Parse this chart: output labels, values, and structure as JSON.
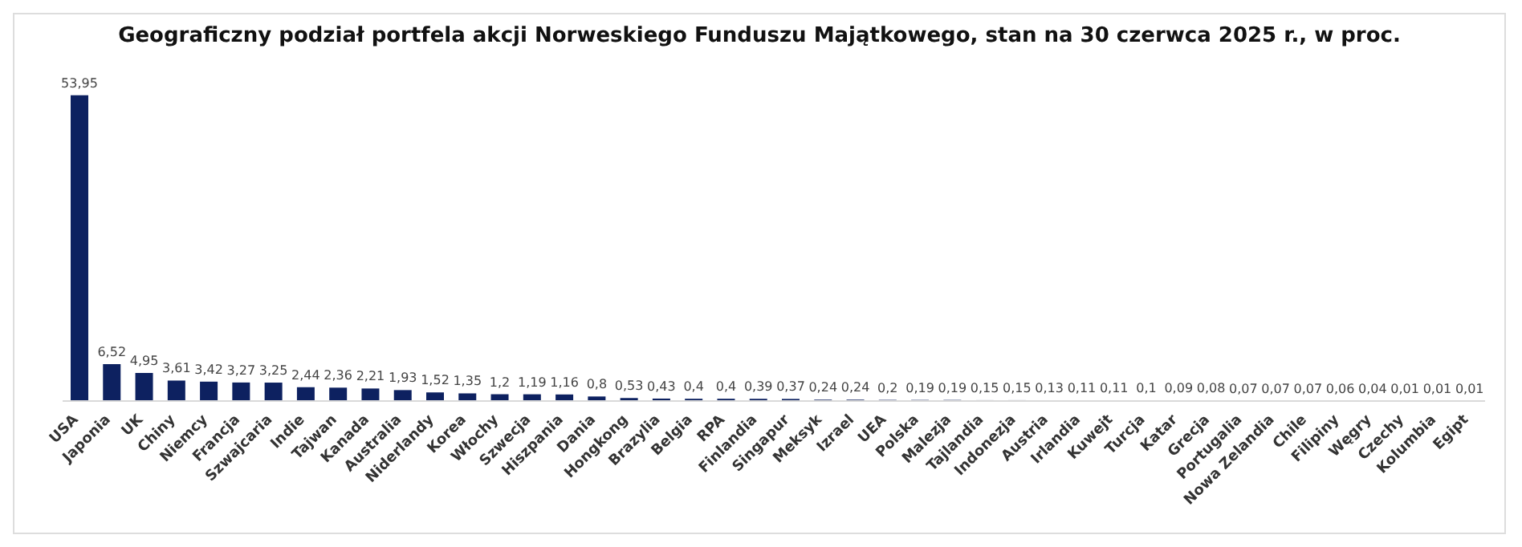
{
  "chart_data": {
    "type": "bar",
    "title": "Geograficzny podział portfela akcji Norweskiego Funduszu Majątkowego, stan na 30 czerwca 2025 r., w proc.",
    "categories": [
      "USA",
      "Japonia",
      "UK",
      "Chiny",
      "Niemcy",
      "Francja",
      "Szwajcaria",
      "Indie",
      "Tajwan",
      "Kanada",
      "Australia",
      "Niderlandy",
      "Korea",
      "Włochy",
      "Szwecja",
      "Hiszpania",
      "Dania",
      "Hongkong",
      "Brazylia",
      "Belgia",
      "RPA",
      "Finlandia",
      "Singapur",
      "Meksyk",
      "Izrael",
      "UEA",
      "Polska",
      "Malezja",
      "Tajlandia",
      "Indonezja",
      "Austria",
      "Irlandia",
      "Kuwejt",
      "Turcja",
      "Katar",
      "Grecja",
      "Portugalia",
      "Nowa Zelandia",
      "Chile",
      "Filipiny",
      "Węgry",
      "Czechy",
      "Kolumbia",
      "Egipt"
    ],
    "values": [
      53.95,
      6.52,
      4.95,
      3.61,
      3.42,
      3.27,
      3.25,
      2.44,
      2.36,
      2.21,
      1.93,
      1.52,
      1.35,
      1.2,
      1.19,
      1.16,
      0.8,
      0.53,
      0.43,
      0.4,
      0.4,
      0.39,
      0.37,
      0.24,
      0.24,
      0.2,
      0.19,
      0.19,
      0.15,
      0.15,
      0.13,
      0.11,
      0.11,
      0.1,
      0.09,
      0.08,
      0.07,
      0.07,
      0.07,
      0.06,
      0.04,
      0.01,
      0.01,
      0.01
    ],
    "value_labels": [
      "53,95",
      "6,52",
      "4,95",
      "3,61",
      "3,42",
      "3,27",
      "3,25",
      "2,44",
      "2,36",
      "2,21",
      "1,93",
      "1,52",
      "1,35",
      "1,2",
      "1,19",
      "1,16",
      "0,8",
      "0,53",
      "0,43",
      "0,4",
      "0,4",
      "0,39",
      "0,37",
      "0,24",
      "0,24",
      "0,2",
      "0,19",
      "0,19",
      "0,15",
      "0,15",
      "0,13",
      "0,11",
      "0,11",
      "0,1",
      "0,09",
      "0,08",
      "0,07",
      "0,07",
      "0,07",
      "0,06",
      "0,04",
      "0,01",
      "0,01",
      "0,01"
    ],
    "color": "#0d2160",
    "tick_labels": "x"
  }
}
